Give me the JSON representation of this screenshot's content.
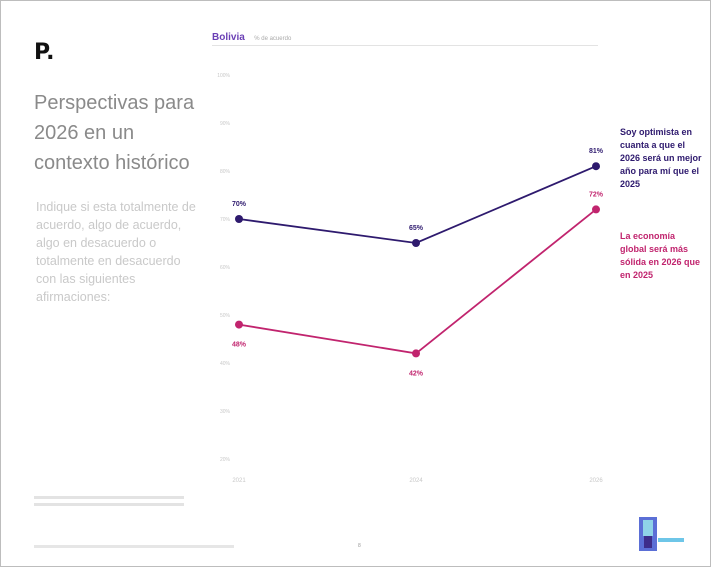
{
  "page": {
    "logo": "P.",
    "title": "Perspectivas para 2026 en un contexto histórico",
    "question": "Indique si esta totalmente de acuerdo, algo de acuerdo, algo en desacuerdo o totalmente en desacuerdo con las siguientes afirmaciones:",
    "page_number": "8"
  },
  "chart_data": {
    "type": "line",
    "country": "Bolivia",
    "unit_label": "% de acuerdo",
    "x": [
      "2021",
      "2024",
      "2026"
    ],
    "ylim": [
      0,
      100
    ],
    "y_ticks": [
      "20%",
      "30%",
      "40%",
      "50%",
      "60%",
      "70%",
      "80%",
      "90%",
      "100%"
    ],
    "grid": false,
    "legend_placement": "right",
    "series": [
      {
        "name": "Soy optimista en cuanta a que el 2026 será un mejor año para mí que el 2025",
        "color": "#2e1a6e",
        "values": [
          70,
          65,
          81
        ],
        "labels": [
          "70%",
          "65%",
          "81%"
        ]
      },
      {
        "name": "La economía global será más sólida en 2026 que en 2025",
        "color": "#c1246e",
        "values": [
          48,
          42,
          72
        ],
        "labels": [
          "48%",
          "42%",
          "72%"
        ]
      }
    ]
  }
}
